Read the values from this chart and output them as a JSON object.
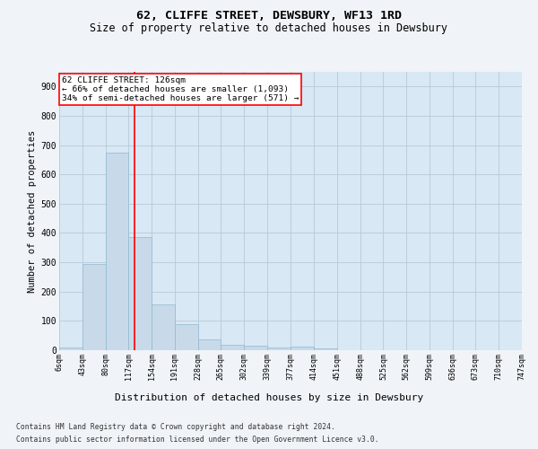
{
  "title1": "62, CLIFFE STREET, DEWSBURY, WF13 1RD",
  "title2": "Size of property relative to detached houses in Dewsbury",
  "xlabel": "Distribution of detached houses by size in Dewsbury",
  "ylabel": "Number of detached properties",
  "annotation_line1": "62 CLIFFE STREET: 126sqm",
  "annotation_line2": "← 66% of detached houses are smaller (1,093)",
  "annotation_line3": "34% of semi-detached houses are larger (571) →",
  "bar_color": "#c8daea",
  "bar_edge_color": "#90b8d0",
  "vline_x": 126,
  "vline_color": "red",
  "bin_edges": [
    6,
    43,
    80,
    117,
    154,
    191,
    228,
    265,
    302,
    339,
    377,
    414,
    451,
    488,
    525,
    562,
    599,
    636,
    673,
    710,
    747
  ],
  "bar_heights": [
    10,
    295,
    675,
    385,
    155,
    90,
    38,
    17,
    15,
    10,
    12,
    5,
    0,
    0,
    0,
    0,
    0,
    0,
    0,
    0
  ],
  "ylim": [
    0,
    950
  ],
  "yticks": [
    0,
    100,
    200,
    300,
    400,
    500,
    600,
    700,
    800,
    900
  ],
  "grid_color": "#b8c8d8",
  "background_color": "#f0f4f8",
  "plot_bg_color": "#d8e8f4",
  "footer1": "Contains HM Land Registry data © Crown copyright and database right 2024.",
  "footer2": "Contains public sector information licensed under the Open Government Licence v3.0.",
  "title1_fontsize": 9.5,
  "title2_fontsize": 8.5,
  "xlabel_fontsize": 8,
  "ylabel_fontsize": 7.5,
  "annotation_fontsize": 6.8,
  "ytick_fontsize": 7,
  "xtick_fontsize": 6,
  "footer_fontsize": 5.8,
  "annotation_box_color": "white",
  "annotation_box_edge": "red"
}
